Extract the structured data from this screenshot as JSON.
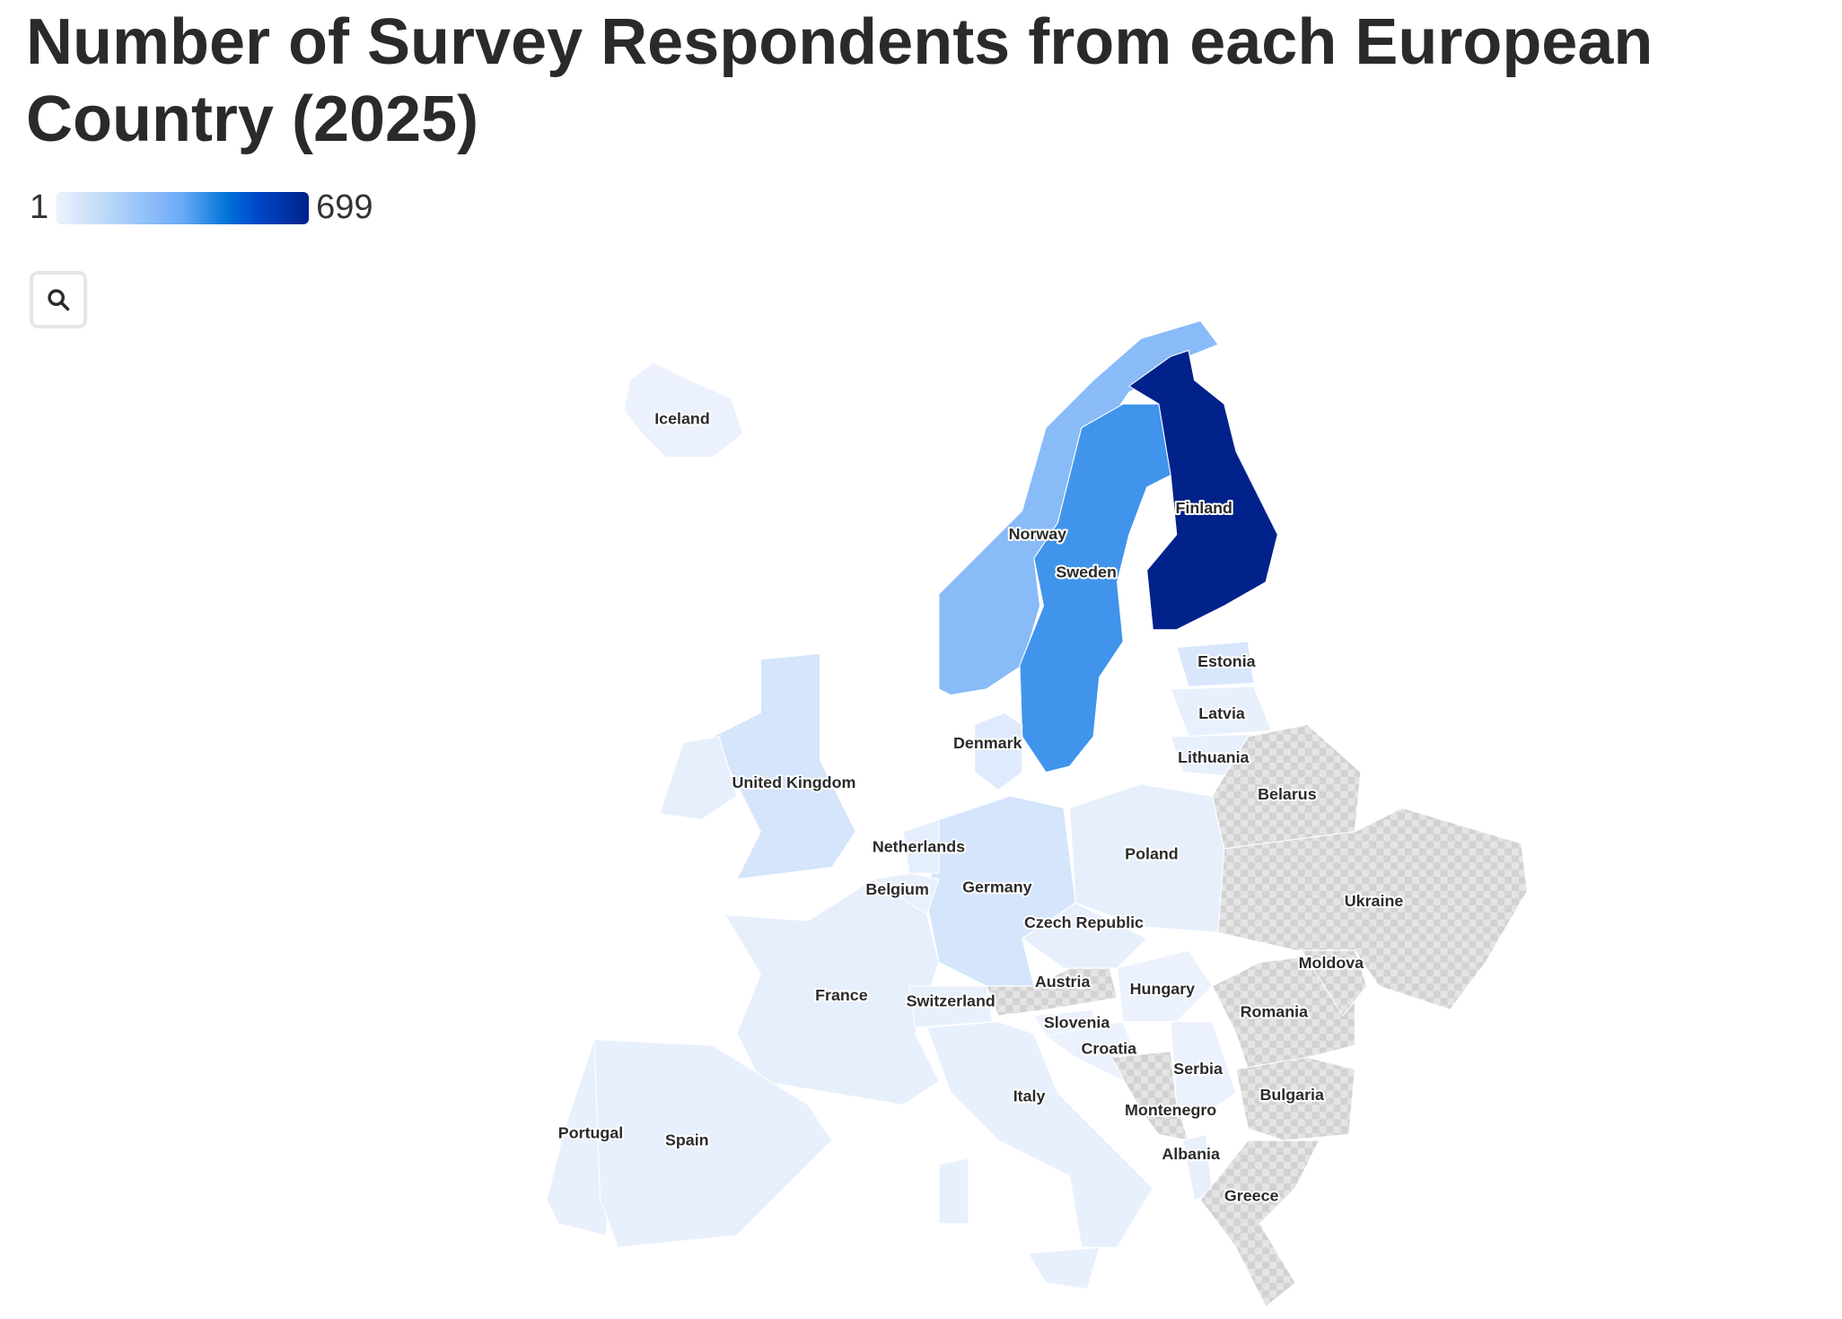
{
  "title": "Number of Survey Respondents from each European Country (2025)",
  "legend": {
    "min_label": "1",
    "max_label": "699",
    "colors": [
      "#eef3fd",
      "#6aaaf7",
      "#0072d8",
      "#00228a"
    ],
    "no_data_color": "#dcdcdc"
  },
  "search_button": {
    "icon": "search-icon"
  },
  "chart_data": {
    "type": "choropleth",
    "title": "Number of Survey Respondents from each European Country (2025)",
    "value_range": [
      1,
      699
    ],
    "regions": [
      {
        "name": "Iceland",
        "value": 5
      },
      {
        "name": "Norway",
        "value": 270
      },
      {
        "name": "Sweden",
        "value": 400
      },
      {
        "name": "Finland",
        "value": 699
      },
      {
        "name": "Denmark",
        "value": 40
      },
      {
        "name": "Estonia",
        "value": 60
      },
      {
        "name": "Latvia",
        "value": 15
      },
      {
        "name": "Lithuania",
        "value": 15
      },
      {
        "name": "Belarus",
        "value": null
      },
      {
        "name": "Ukraine",
        "value": null
      },
      {
        "name": "Poland",
        "value": 20
      },
      {
        "name": "Germany",
        "value": 70
      },
      {
        "name": "Netherlands",
        "value": 25
      },
      {
        "name": "Belgium",
        "value": 15
      },
      {
        "name": "France",
        "value": 20
      },
      {
        "name": "United Kingdom",
        "value": 70
      },
      {
        "name": "Ireland",
        "value": 20
      },
      {
        "name": "Portugal",
        "value": 15
      },
      {
        "name": "Spain",
        "value": 15
      },
      {
        "name": "Switzerland",
        "value": 15
      },
      {
        "name": "Austria",
        "value": null
      },
      {
        "name": "Italy",
        "value": 15
      },
      {
        "name": "Czech Republic",
        "value": 20
      },
      {
        "name": "Hungary",
        "value": 10
      },
      {
        "name": "Slovenia",
        "value": 10
      },
      {
        "name": "Croatia",
        "value": 10
      },
      {
        "name": "Serbia",
        "value": 10
      },
      {
        "name": "Montenegro",
        "value": null
      },
      {
        "name": "Albania",
        "value": 20
      },
      {
        "name": "Romania",
        "value": null
      },
      {
        "name": "Moldova",
        "value": null
      },
      {
        "name": "Bulgaria",
        "value": null
      },
      {
        "name": "Greece",
        "value": null
      }
    ]
  }
}
